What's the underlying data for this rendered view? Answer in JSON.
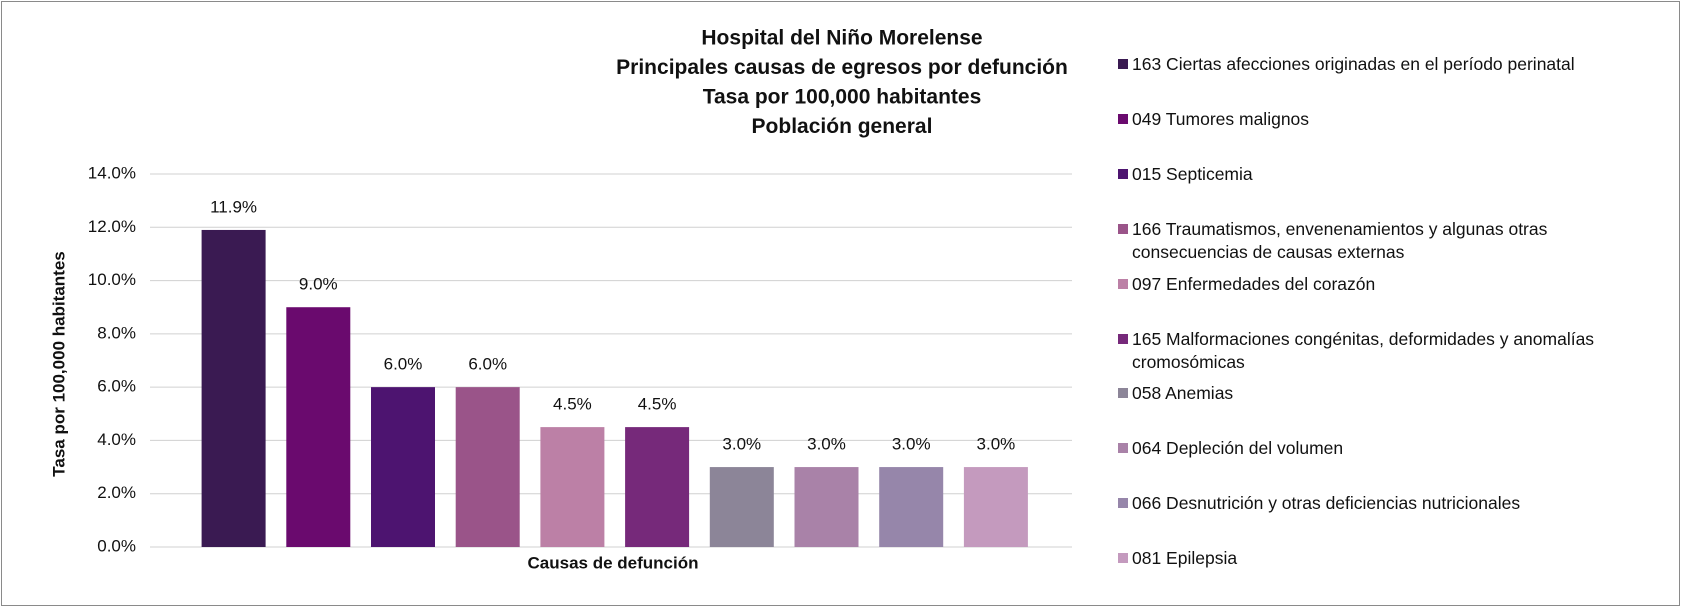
{
  "chart_data": {
    "type": "bar",
    "title": [
      "Hospital del Niño Morelense",
      "Principales causas de egresos por defunción",
      "Tasa por 100,000 habitantes",
      "Población general"
    ],
    "xlabel": "Causas de defunción",
    "ylabel": "Tasa por 100,000 habitantes",
    "categories": [
      "163 Ciertas afecciones originadas en el período perinatal",
      "049 Tumores malignos",
      "015 Septicemia",
      "166 Traumatismos, envenenamientos y algunas otras consecuencias de causas externas",
      "097 Enfermedades del corazón",
      "165 Malformaciones congénitas, deformidades y anomalías cromosómicas",
      "058 Anemias",
      "064 Depleción del volumen",
      "066 Desnutrición y otras deficiencias nutricionales",
      "081 Epilepsia"
    ],
    "values": [
      11.9,
      9.0,
      6.0,
      6.0,
      4.5,
      4.5,
      3.0,
      3.0,
      3.0,
      3.0
    ],
    "value_labels": [
      "11.9%",
      "9.0%",
      "6.0%",
      "6.0%",
      "4.5%",
      "4.5%",
      "3.0%",
      "3.0%",
      "3.0%",
      "3.0%"
    ],
    "colors": [
      "#3a1a52",
      "#6a0a6e",
      "#4d1470",
      "#9a5489",
      "#bc80a6",
      "#76297a",
      "#8c8598",
      "#a982a8",
      "#9686aa",
      "#c49abe"
    ],
    "ylim": [
      0,
      14
    ],
    "yticks": [
      {
        "value": 0,
        "label": "0.0%"
      },
      {
        "value": 2,
        "label": "2.0%"
      },
      {
        "value": 4,
        "label": "4.0%"
      },
      {
        "value": 6,
        "label": "6.0%"
      },
      {
        "value": 8,
        "label": "8.0%"
      },
      {
        "value": 10,
        "label": "10.0%"
      },
      {
        "value": 12,
        "label": "12.0%"
      },
      {
        "value": 14,
        "label": "14.0%"
      }
    ],
    "grid": true,
    "legend": "right"
  }
}
